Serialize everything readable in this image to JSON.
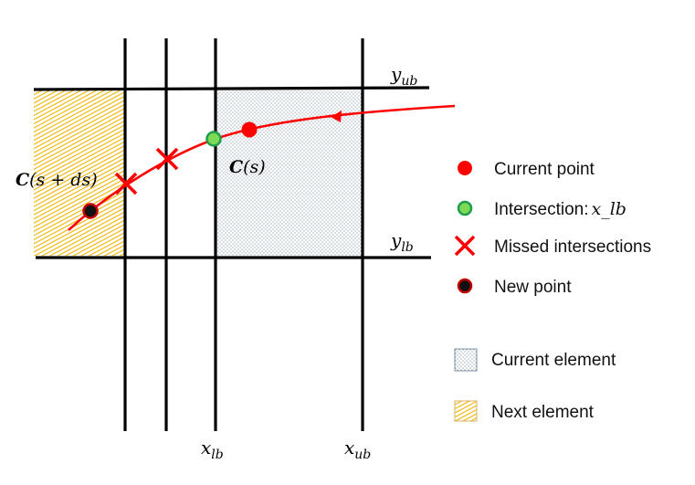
{
  "colors": {
    "line": "#000000",
    "curve": "#ff0000",
    "current_point": "#ff0000",
    "intersection_fill": "#7ed957",
    "intersection_stroke": "#1e9e4a",
    "new_point_fill": "#111111",
    "new_point_stroke": "#c00000",
    "current_element_dots": "#3c5a7a",
    "next_element_hatch": "#f0b400"
  },
  "labels": {
    "y_ub": {
      "base": "y",
      "sub": "ub"
    },
    "y_lb": {
      "base": "y",
      "sub": "lb"
    },
    "x_lb": {
      "base": "x",
      "sub": "lb"
    },
    "x_ub": {
      "base": "x",
      "sub": "ub"
    },
    "c_s": {
      "fn": "C",
      "arg": "(s)"
    },
    "c_s_ds": {
      "fn": "C",
      "arg": "(s + ds)"
    }
  },
  "legend": {
    "current_point": "Current point",
    "intersection": "Intersection:",
    "intersection_math": "x_lb",
    "missed": "Missed intersections",
    "new_point": "New point",
    "current_element": "Current element",
    "next_element": "Next element"
  }
}
